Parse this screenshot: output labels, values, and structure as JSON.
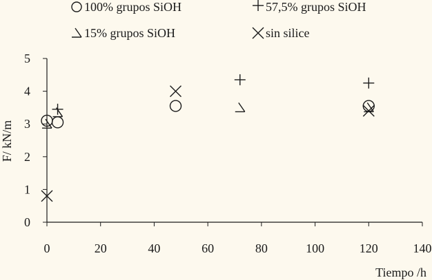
{
  "chart_data": {
    "type": "scatter",
    "title": "",
    "xlabel": "Tiempo /h",
    "ylabel": "F/ kN/m",
    "xlim": [
      0,
      140
    ],
    "ylim": [
      0,
      5
    ],
    "xticks": [
      0,
      20,
      40,
      60,
      80,
      100,
      120,
      140
    ],
    "yticks": [
      0,
      1,
      2,
      3,
      4,
      5
    ],
    "grid": false,
    "legend_placement": "top",
    "series": [
      {
        "name": "100% grupos SiOH",
        "marker": "circle",
        "points": [
          {
            "x": 0,
            "y": 3.1
          },
          {
            "x": 4,
            "y": 3.05
          },
          {
            "x": 48,
            "y": 3.55
          },
          {
            "x": 120,
            "y": 3.55
          }
        ]
      },
      {
        "name": "57,5% grupos SiOH",
        "marker": "plus",
        "points": [
          {
            "x": 4,
            "y": 3.45
          },
          {
            "x": 72,
            "y": 4.35
          },
          {
            "x": 120,
            "y": 4.25
          }
        ]
      },
      {
        "name": "15% grupos SiOH",
        "marker": "half-triangle",
        "points": [
          {
            "x": 0,
            "y": 3.0
          },
          {
            "x": 4,
            "y": 3.35
          },
          {
            "x": 72,
            "y": 3.5
          },
          {
            "x": 120,
            "y": 3.5
          }
        ]
      },
      {
        "name": "sin silice",
        "marker": "cross",
        "points": [
          {
            "x": 0,
            "y": 0.8
          },
          {
            "x": 48,
            "y": 4.0
          },
          {
            "x": 120,
            "y": 3.4
          }
        ]
      }
    ]
  }
}
